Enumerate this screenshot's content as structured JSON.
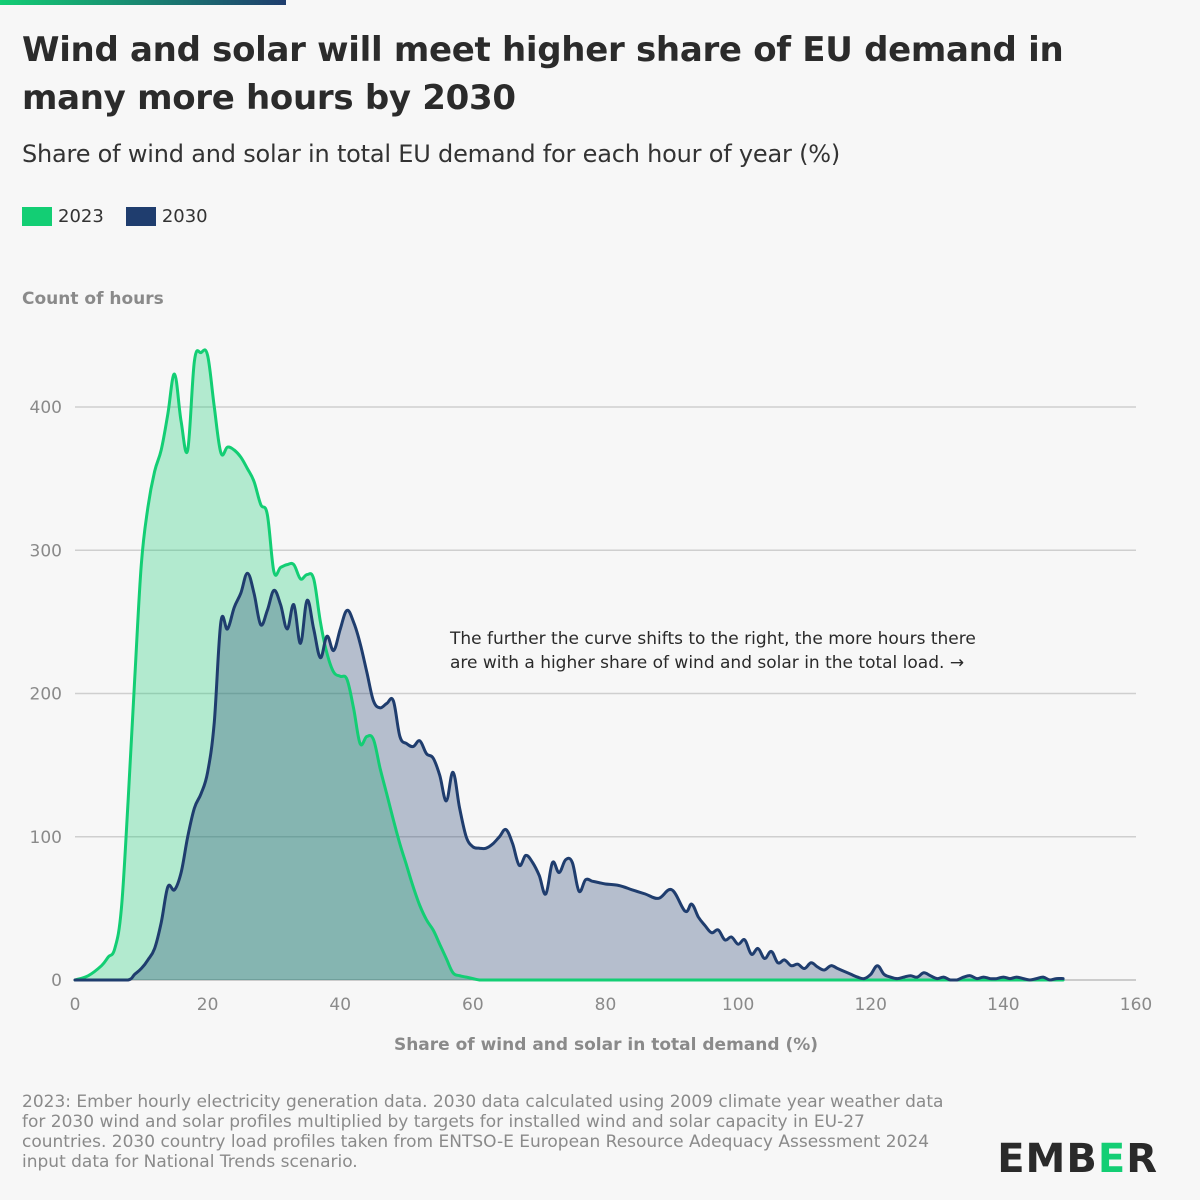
{
  "header": {
    "title": "Wind and solar will meet higher share of EU demand in many more hours by 2030",
    "subtitle": "Share of wind and solar in total EU demand for each hour of year (%)"
  },
  "legend": [
    {
      "label": "2023",
      "color": "#13ce74"
    },
    {
      "label": "2030",
      "color": "#1f3d6e"
    }
  ],
  "footer": {
    "source": "2023: Ember hourly electricity generation data. 2030 data calculated using 2009 climate year weather data for 2030 wind and solar profiles multiplied by targets for installed wind and solar capacity in EU-27 countries. 2030 country load profiles taken from ENTSO-E European Resource Adequacy Assessment 2024 input data for National Trends scenario.",
    "logo": "EMBER"
  },
  "chart_data": {
    "type": "area",
    "ylabel": "Count of hours",
    "xlabel": "Share of wind and solar in total demand (%)",
    "xlim": [
      0,
      160
    ],
    "ylim": [
      0,
      440
    ],
    "xticks": [
      0,
      20,
      40,
      60,
      80,
      100,
      120,
      140,
      160
    ],
    "yticks": [
      0,
      100,
      200,
      300,
      400
    ],
    "grid": true,
    "annotation": "The further the curve shifts to the right, the more hours there are with a higher share of wind and solar in the total load. →",
    "series": [
      {
        "name": "2023",
        "color": "#13ce74",
        "fill": "rgba(19,206,116,0.30)",
        "x": [
          0,
          2,
          4,
          5,
          6,
          7,
          8,
          9,
          10,
          11,
          12,
          13,
          14,
          15,
          16,
          17,
          18,
          19,
          20,
          21,
          22,
          23,
          24,
          25,
          26,
          27,
          28,
          29,
          30,
          31,
          32,
          33,
          34,
          35,
          36,
          37,
          38,
          39,
          40,
          41,
          42,
          43,
          44,
          45,
          46,
          47,
          48,
          49,
          50,
          51,
          52,
          53,
          54,
          55,
          56,
          57,
          58,
          59,
          60,
          61,
          62,
          70,
          80,
          90,
          100,
          110,
          120,
          130,
          140,
          149
        ],
        "y": [
          0,
          3,
          10,
          16,
          22,
          50,
          125,
          210,
          290,
          330,
          355,
          370,
          395,
          423,
          390,
          370,
          432,
          438,
          436,
          400,
          368,
          372,
          370,
          365,
          357,
          348,
          332,
          325,
          285,
          288,
          290,
          290,
          280,
          283,
          280,
          250,
          228,
          215,
          212,
          210,
          190,
          165,
          170,
          168,
          148,
          130,
          112,
          95,
          80,
          65,
          52,
          42,
          35,
          25,
          15,
          5,
          3,
          2,
          1,
          0,
          0,
          0,
          0,
          0,
          0,
          0,
          0,
          0,
          0,
          0
        ]
      },
      {
        "name": "2030",
        "color": "#1f3d6e",
        "fill": "rgba(31,61,110,0.30)",
        "x": [
          0,
          5,
          8,
          9,
          10,
          11,
          12,
          13,
          14,
          15,
          16,
          17,
          18,
          19,
          20,
          21,
          22,
          23,
          24,
          25,
          26,
          27,
          28,
          29,
          30,
          31,
          32,
          33,
          34,
          35,
          36,
          37,
          38,
          39,
          40,
          41,
          42,
          43,
          44,
          45,
          46,
          47,
          48,
          49,
          50,
          51,
          52,
          53,
          54,
          55,
          56,
          57,
          58,
          59,
          60,
          61,
          62,
          63,
          64,
          65,
          66,
          67,
          68,
          69,
          70,
          71,
          72,
          73,
          74,
          75,
          76,
          77,
          78,
          79,
          80,
          82,
          84,
          86,
          88,
          90,
          92,
          93,
          94,
          95,
          96,
          97,
          98,
          99,
          100,
          101,
          102,
          103,
          104,
          105,
          106,
          107,
          108,
          109,
          110,
          111,
          112,
          113,
          114,
          115,
          116,
          117,
          118,
          119,
          120,
          121,
          122,
          123,
          124,
          125,
          126,
          127,
          128,
          129,
          130,
          131,
          132,
          133,
          134,
          135,
          136,
          137,
          138,
          139,
          140,
          141,
          142,
          143,
          144,
          145,
          146,
          147,
          148,
          149
        ],
        "y": [
          0,
          0,
          0,
          4,
          8,
          14,
          22,
          40,
          65,
          63,
          75,
          100,
          120,
          130,
          145,
          180,
          250,
          245,
          260,
          270,
          284,
          270,
          248,
          258,
          272,
          262,
          245,
          262,
          235,
          265,
          245,
          225,
          240,
          230,
          245,
          258,
          250,
          235,
          215,
          195,
          190,
          193,
          195,
          170,
          165,
          163,
          167,
          158,
          155,
          143,
          125,
          145,
          120,
          100,
          93,
          92,
          92,
          95,
          100,
          105,
          95,
          80,
          87,
          82,
          73,
          60,
          82,
          75,
          84,
          82,
          62,
          70,
          69,
          68,
          67,
          66,
          63,
          60,
          57,
          63,
          48,
          53,
          44,
          38,
          33,
          35,
          28,
          30,
          25,
          28,
          18,
          22,
          15,
          20,
          12,
          14,
          10,
          11,
          8,
          12,
          9,
          7,
          10,
          8,
          6,
          4,
          2,
          1,
          4,
          10,
          4,
          2,
          1,
          2,
          3,
          2,
          5,
          3,
          1,
          2,
          0,
          0,
          2,
          3,
          1,
          2,
          1,
          1,
          2,
          1,
          2,
          1,
          0,
          1,
          2,
          0,
          1,
          1
        ]
      }
    ]
  }
}
